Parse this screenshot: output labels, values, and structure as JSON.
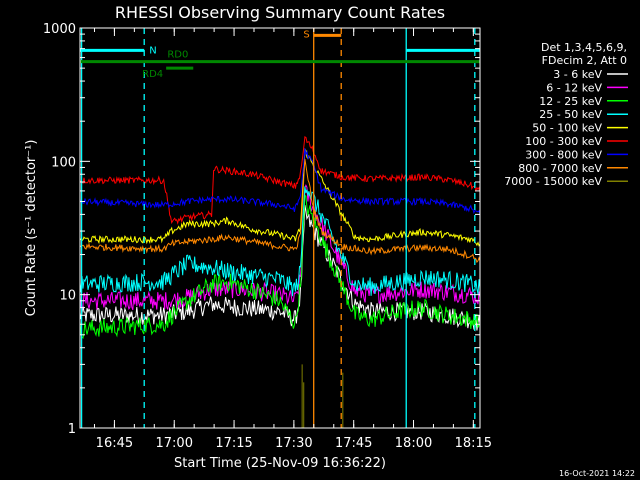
{
  "chart_data": {
    "type": "line",
    "title": "RHESSI Observing Summary Count Rates",
    "xlabel": "Start Time (25-Nov-09 16:36:22)",
    "ylabel": "Count Rate (s⁻¹ detector⁻¹)",
    "ylog": true,
    "xlim": [
      0,
      100.3
    ],
    "ylim": [
      1,
      1000
    ],
    "x_ticks": [
      {
        "t": 8.63,
        "label": "16:45"
      },
      {
        "t": 23.63,
        "label": "17:00"
      },
      {
        "t": 38.63,
        "label": "17:15"
      },
      {
        "t": 53.63,
        "label": "17:30"
      },
      {
        "t": 68.63,
        "label": "17:45"
      },
      {
        "t": 83.63,
        "label": "18:00"
      },
      {
        "t": 98.63,
        "label": "18:15"
      }
    ],
    "y_ticks": [
      {
        "v": 1,
        "label": "1"
      },
      {
        "v": 10,
        "label": "10"
      },
      {
        "v": 100,
        "label": "100"
      },
      {
        "v": 1000,
        "label": "1000"
      }
    ],
    "timestamp": "16-Oct-2021 14:22",
    "legend": {
      "header": [
        "Det 1,3,4,5,6,9,",
        "FDecim 2, Att 0"
      ],
      "placement": "right"
    },
    "series": [
      {
        "name": "3 - 6 keV",
        "color": "#ffffff",
        "points": [
          [
            0,
            7
          ],
          [
            21,
            7
          ],
          [
            27,
            7.5
          ],
          [
            33,
            8.5
          ],
          [
            40,
            8
          ],
          [
            50,
            7.5
          ],
          [
            54,
            6.5
          ],
          [
            55.3,
            10
          ],
          [
            56.4,
            40
          ],
          [
            69,
            8.5
          ],
          [
            73,
            7.5
          ],
          [
            80,
            7.5
          ],
          [
            86,
            7.5
          ],
          [
            92,
            7
          ],
          [
            98,
            6.5
          ],
          [
            100.3,
            6
          ]
        ]
      },
      {
        "name": "6 - 12 keV",
        "color": "#ff00ff",
        "points": [
          [
            0,
            9
          ],
          [
            21,
            9
          ],
          [
            27,
            9.5
          ],
          [
            33,
            11
          ],
          [
            40,
            11
          ],
          [
            50,
            10
          ],
          [
            54,
            9
          ],
          [
            55.3,
            13
          ],
          [
            56.4,
            60
          ],
          [
            69,
            10.5
          ],
          [
            73,
            10
          ],
          [
            80,
            10.5
          ],
          [
            86,
            11
          ],
          [
            92,
            10.5
          ],
          [
            98,
            10
          ],
          [
            100.3,
            9.5
          ]
        ]
      },
      {
        "name": "12 - 25 keV",
        "color": "#00ff00",
        "points": [
          [
            0,
            5.5
          ],
          [
            21,
            6
          ],
          [
            23,
            7
          ],
          [
            27,
            9
          ],
          [
            33,
            12
          ],
          [
            37,
            12.5
          ],
          [
            43,
            11
          ],
          [
            50,
            9
          ],
          [
            54,
            6
          ],
          [
            55.3,
            12
          ],
          [
            56.4,
            50
          ],
          [
            69,
            7
          ],
          [
            73,
            6.5
          ],
          [
            80,
            7.5
          ],
          [
            86,
            8
          ],
          [
            92,
            7
          ],
          [
            98,
            6.5
          ],
          [
            100.3,
            6
          ]
        ]
      },
      {
        "name": "25 - 50 keV",
        "color": "#00ffff",
        "points": [
          [
            0,
            12
          ],
          [
            21,
            12.5
          ],
          [
            23,
            14
          ],
          [
            27,
            17
          ],
          [
            33,
            16
          ],
          [
            37,
            15
          ],
          [
            43,
            14
          ],
          [
            50,
            13
          ],
          [
            54,
            11
          ],
          [
            55.3,
            15
          ],
          [
            56.4,
            70
          ],
          [
            69,
            12
          ],
          [
            73,
            11.5
          ],
          [
            80,
            12.5
          ],
          [
            86,
            13.5
          ],
          [
            92,
            13
          ],
          [
            98,
            12
          ],
          [
            100.3,
            11
          ]
        ]
      },
      {
        "name": "50 - 100 keV",
        "color": "#ffff00",
        "points": [
          [
            0,
            26
          ],
          [
            21,
            26
          ],
          [
            23,
            30
          ],
          [
            27,
            34
          ],
          [
            33,
            34
          ],
          [
            37,
            36
          ],
          [
            43,
            31
          ],
          [
            50,
            28
          ],
          [
            54,
            26
          ],
          [
            55.3,
            32
          ],
          [
            56.4,
            120
          ],
          [
            69,
            27
          ],
          [
            73,
            26
          ],
          [
            80,
            28
          ],
          [
            86,
            29.5
          ],
          [
            92,
            28
          ],
          [
            98,
            26
          ],
          [
            100.3,
            24
          ]
        ]
      },
      {
        "name": "100 - 300 keV",
        "color": "#ff0000",
        "points": [
          [
            0,
            72
          ],
          [
            21,
            72
          ],
          [
            23,
            35
          ],
          [
            27,
            38
          ],
          [
            33,
            40
          ],
          [
            33.5,
            88
          ],
          [
            37,
            85
          ],
          [
            43,
            80
          ],
          [
            50,
            70
          ],
          [
            54,
            65
          ],
          [
            55.3,
            80
          ],
          [
            56.4,
            150
          ],
          [
            58.5,
            120
          ],
          [
            60.5,
            85
          ],
          [
            66,
            76
          ],
          [
            73,
            74
          ],
          [
            80,
            75
          ],
          [
            86,
            76
          ],
          [
            92,
            73
          ],
          [
            98,
            66
          ],
          [
            100.3,
            60
          ]
        ]
      },
      {
        "name": "300 - 800 keV",
        "color": "#0000ff",
        "points": [
          [
            0,
            50
          ],
          [
            21,
            47
          ],
          [
            23,
            48
          ],
          [
            27,
            50
          ],
          [
            33,
            52
          ],
          [
            37,
            52
          ],
          [
            43,
            50
          ],
          [
            50,
            47
          ],
          [
            54,
            44
          ],
          [
            55.3,
            55
          ],
          [
            56.4,
            120
          ],
          [
            58.5,
            95
          ],
          [
            60.5,
            62
          ],
          [
            66,
            52
          ],
          [
            73,
            50
          ],
          [
            80,
            50
          ],
          [
            86,
            50
          ],
          [
            92,
            48
          ],
          [
            98,
            44
          ],
          [
            100.3,
            40
          ]
        ]
      },
      {
        "name": "800 - 7000 keV",
        "color": "#ff8800",
        "points": [
          [
            0,
            23
          ],
          [
            21,
            22
          ],
          [
            23,
            24
          ],
          [
            27,
            25
          ],
          [
            33,
            26
          ],
          [
            37,
            27
          ],
          [
            43,
            25
          ],
          [
            50,
            23
          ],
          [
            54,
            22
          ],
          [
            55.3,
            28
          ],
          [
            56.4,
            100
          ],
          [
            58.5,
            45
          ],
          [
            60.5,
            30
          ],
          [
            66,
            23
          ],
          [
            73,
            21
          ],
          [
            80,
            22
          ],
          [
            86,
            22.5
          ],
          [
            92,
            22
          ],
          [
            98,
            19.5
          ],
          [
            100.3,
            18
          ]
        ]
      },
      {
        "name": "7000 - 15000 keV",
        "color": "#808000",
        "points": []
      }
    ],
    "intervals": [
      {
        "label": "N",
        "color": "#00ffff",
        "level": 680,
        "segments": [
          [
            0,
            16.1
          ],
          [
            81.8,
            100.3
          ]
        ]
      },
      {
        "label": "S",
        "color": "#ff8800",
        "level": 880,
        "segments": [
          [
            58.6,
            65.5
          ]
        ]
      },
      {
        "label": "RD0",
        "color": "#008800",
        "level": 560,
        "segments": [
          [
            0,
            100.3
          ]
        ]
      },
      {
        "label": "RD4",
        "color": "#008800",
        "level": 500,
        "segments": [
          [
            21.6,
            28.4
          ]
        ]
      }
    ],
    "vlines": [
      {
        "t": 0.4,
        "color": "#00ffff",
        "style": "solid"
      },
      {
        "t": 16.1,
        "color": "#00ffff",
        "style": "dashed"
      },
      {
        "t": 81.8,
        "color": "#00ffff",
        "style": "solid"
      },
      {
        "t": 99.0,
        "color": "#00ffff",
        "style": "dashed"
      },
      {
        "t": 58.6,
        "color": "#ff8800",
        "style": "solid"
      },
      {
        "t": 65.5,
        "color": "#ff8800",
        "style": "dashed"
      }
    ]
  }
}
